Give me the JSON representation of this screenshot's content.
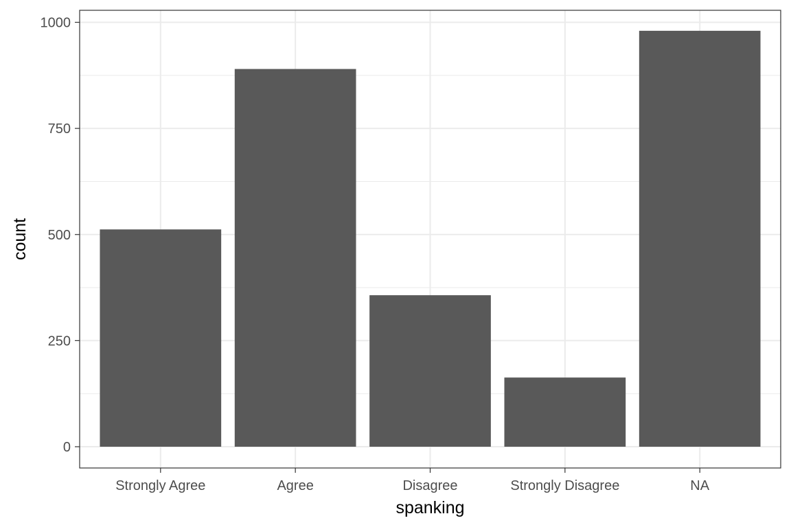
{
  "chart_data": {
    "type": "bar",
    "title": "",
    "xlabel": "spanking",
    "ylabel": "count",
    "categories": [
      "Strongly Agree",
      "Agree",
      "Disagree",
      "Strongly Disagree",
      "NA"
    ],
    "values": [
      512,
      890,
      357,
      163,
      980
    ],
    "ylim": [
      0,
      1000
    ],
    "yticks": [
      0,
      250,
      500,
      750,
      1000
    ],
    "grid": true,
    "bar_color": "#595959",
    "grid_color": "#ebebeb",
    "panel_border_color": "#333333"
  }
}
